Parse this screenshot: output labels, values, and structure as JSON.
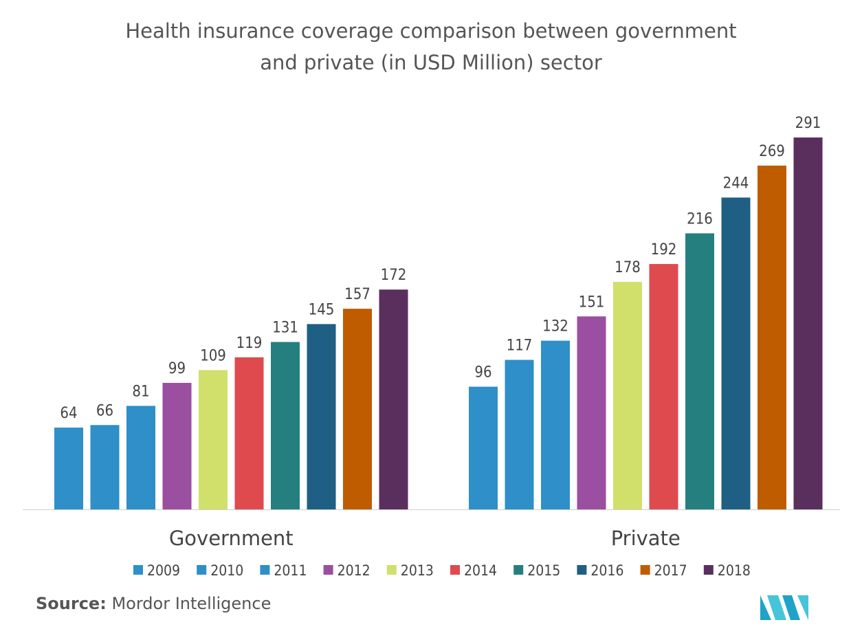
{
  "chart_data": {
    "type": "bar",
    "title_line1": "Health insurance coverage comparison between government",
    "title_line2": "and private (in USD Million) sector",
    "categories": [
      "Government",
      "Private"
    ],
    "series": [
      {
        "name": "2009",
        "color": "#2E8FC9",
        "values": [
          64,
          96
        ]
      },
      {
        "name": "2010",
        "color": "#2E8FC9",
        "values": [
          66,
          117
        ]
      },
      {
        "name": "2011",
        "color": "#2E8FC9",
        "values": [
          81,
          132
        ]
      },
      {
        "name": "2012",
        "color": "#9B4FA0",
        "values": [
          99,
          151
        ]
      },
      {
        "name": "2013",
        "color": "#D0E06A",
        "values": [
          109,
          178
        ]
      },
      {
        "name": "2014",
        "color": "#DF4A4E",
        "values": [
          119,
          192
        ]
      },
      {
        "name": "2015",
        "color": "#267F7F",
        "values": [
          131,
          216
        ]
      },
      {
        "name": "2016",
        "color": "#1F5F83",
        "values": [
          145,
          244
        ]
      },
      {
        "name": "2017",
        "color": "#BF5C00",
        "values": [
          157,
          269
        ]
      },
      {
        "name": "2018",
        "color": "#5A2F5E",
        "values": [
          172,
          291
        ]
      }
    ],
    "ylim": [
      0,
      291
    ],
    "grid": false,
    "legend_position": "bottom"
  },
  "source": {
    "label": "Source:",
    "text": "Mordor Intelligence"
  },
  "logo": {
    "name": "mordor-intelligence-logo-icon",
    "colors": [
      "#1FA3C9",
      "#46C4D8"
    ]
  }
}
